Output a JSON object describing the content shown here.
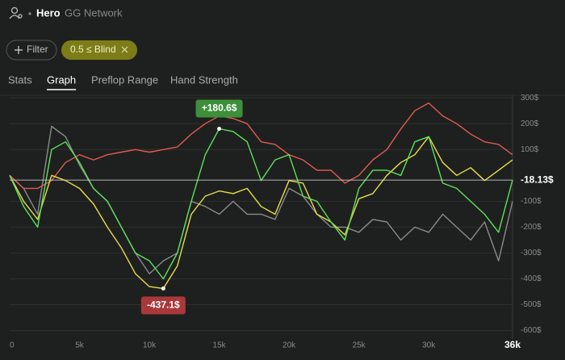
{
  "header": {
    "name": "Hero",
    "network": "GG Network"
  },
  "filters": {
    "button": "Filter",
    "chip": "0.5 ≤ Blind"
  },
  "tabs": [
    "Stats",
    "Graph",
    "Preflop Range",
    "Hand Strength"
  ],
  "active_tab": 1,
  "chart_data": {
    "type": "line",
    "x": [
      0,
      1000,
      2000,
      3000,
      4000,
      5000,
      6000,
      7000,
      8000,
      9000,
      10000,
      11000,
      12000,
      13000,
      14000,
      15000,
      16000,
      17000,
      18000,
      19000,
      20000,
      21000,
      22000,
      23000,
      24000,
      25000,
      26000,
      27000,
      28000,
      29000,
      30000,
      31000,
      32000,
      33000,
      34000,
      35000,
      36000
    ],
    "xlim": [
      0,
      36000
    ],
    "xticks": [
      0,
      {
        "value": 5000,
        "label": "5k"
      },
      {
        "value": 10000,
        "label": "10k"
      },
      {
        "value": 15000,
        "label": "15k"
      },
      {
        "value": 20000,
        "label": "20k"
      },
      {
        "value": 25000,
        "label": "25k"
      },
      {
        "value": 30000,
        "label": "30k"
      },
      {
        "value": 36000,
        "label": "36k"
      }
    ],
    "ylim": [
      -620,
      310
    ],
    "yticks": [
      {
        "value": 300,
        "label": "300$"
      },
      {
        "value": 200,
        "label": "200$"
      },
      {
        "value": 100,
        "label": "100$"
      },
      {
        "value": -100,
        "label": "-100$"
      },
      {
        "value": -200,
        "label": "-200$"
      },
      {
        "value": -300,
        "label": "-300$"
      },
      {
        "value": -400,
        "label": "-400$"
      },
      {
        "value": -500,
        "label": "-500$"
      },
      {
        "value": -600,
        "label": "-600$"
      }
    ],
    "grid": true,
    "series": [
      {
        "color": "#8a8a8a",
        "values": [
          0,
          -50,
          -150,
          190,
          150,
          40,
          -50,
          -100,
          -200,
          -300,
          -380,
          -330,
          -300,
          -100,
          -120,
          -150,
          -100,
          -150,
          -150,
          -170,
          -50,
          -80,
          -150,
          -200,
          -200,
          -220,
          -170,
          -180,
          -250,
          -200,
          -220,
          -150,
          -200,
          -250,
          -180,
          -330,
          -100
        ]
      },
      {
        "color": "#e05a4f",
        "values": [
          0,
          -50,
          -50,
          -20,
          50,
          80,
          60,
          80,
          90,
          100,
          90,
          100,
          110,
          160,
          200,
          230,
          220,
          200,
          130,
          120,
          80,
          60,
          20,
          20,
          -30,
          0,
          60,
          100,
          180,
          250,
          280,
          230,
          200,
          160,
          130,
          120,
          80
        ]
      },
      {
        "color": "#e8dc4a",
        "values": [
          0,
          -100,
          -170,
          0,
          -20,
          -50,
          -110,
          -200,
          -280,
          -380,
          -430,
          -437.1,
          -350,
          -150,
          -80,
          -60,
          -70,
          -50,
          -120,
          -150,
          -20,
          -30,
          -150,
          -180,
          -230,
          -90,
          -70,
          0,
          50,
          80,
          150,
          50,
          0,
          30,
          -20,
          20,
          60
        ]
      },
      {
        "color": "#5ee05a",
        "values": [
          0,
          -120,
          -200,
          100,
          130,
          50,
          -50,
          -100,
          -200,
          -300,
          -330,
          -400,
          -300,
          -100,
          80,
          180.6,
          170,
          130,
          -20,
          60,
          80,
          -80,
          -100,
          -180,
          -250,
          -50,
          20,
          20,
          0,
          130,
          150,
          -30,
          -50,
          -100,
          -150,
          -220,
          -18.13
        ]
      }
    ],
    "annotations": [
      {
        "x": 15000,
        "value": 180.6,
        "label": "+180.6$",
        "color": "#3d8f3a"
      },
      {
        "x": 11000,
        "value": -437.1,
        "label": "-437.1$",
        "color": "#a8383a"
      }
    ],
    "current": {
      "value": -18.13,
      "label": "-18.13$"
    }
  }
}
